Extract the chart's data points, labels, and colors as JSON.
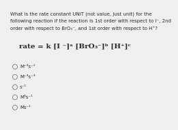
{
  "bg_color": "#efefef",
  "question_lines": [
    "What is the rate constant UNIT (not value, just unit) for the",
    "following reaction if the reaction is 1st order with respect to I⁻, 2nd",
    "order with respect to BrO₃⁻, and 1st order with respect to H⁺?"
  ],
  "equation_text": "rate = k [I ⁻]ᵃ [BrO₃⁻]ᵇ [H⁺]ᶜ",
  "options": [
    "M⁻³s⁻¹",
    "M⁻³s⁻³",
    "s⁻¹",
    "M³s⁻¹",
    "Ms⁻¹"
  ],
  "title_fontsize": 5.0,
  "equation_fontsize": 7.5,
  "option_fontsize": 5.0,
  "text_color": "#2a2a2a",
  "radio_color": "#777777"
}
